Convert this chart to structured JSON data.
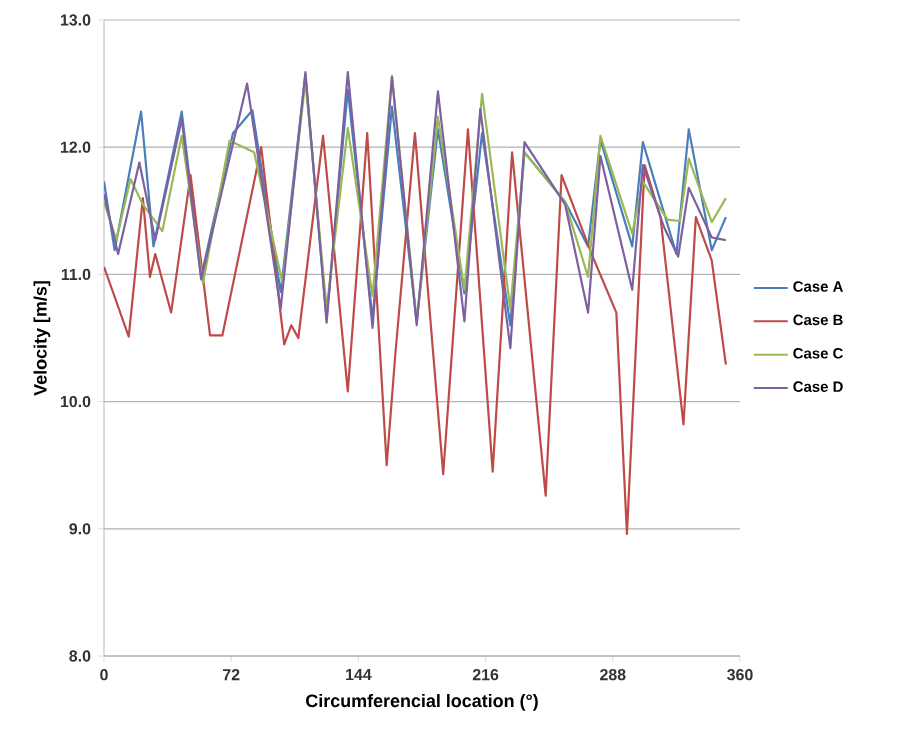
{
  "chart_data": {
    "type": "line",
    "xlabel": "Circumferencial location (°)",
    "ylabel": "Velocity [m/s]",
    "xlim": [
      0,
      360
    ],
    "xticks": [
      0,
      72,
      144,
      216,
      288,
      360
    ],
    "ylim": [
      8,
      13
    ],
    "yticks": [
      {
        "value": 8,
        "label": "8.0"
      },
      {
        "value": 9,
        "label": "9.0"
      },
      {
        "value": 10,
        "label": "10.0"
      },
      {
        "value": 11,
        "label": "11.0"
      },
      {
        "value": 12,
        "label": "12.0"
      },
      {
        "value": 13,
        "label": "13.0"
      }
    ],
    "grid": "y",
    "legend": "right",
    "marker": "none",
    "line_style": "solid",
    "series": [
      {
        "name": "Case A",
        "color": "#4a7ebb",
        "x": [
          0,
          6,
          21,
          28,
          44,
          55,
          73,
          84,
          100,
          114,
          126,
          138,
          152,
          163,
          177,
          189,
          204,
          214,
          230,
          238,
          261,
          274,
          281,
          299,
          305,
          324,
          331,
          344,
          352
        ],
        "values": [
          11.73,
          11.19,
          12.28,
          11.22,
          12.28,
          10.98,
          12.11,
          12.29,
          10.86,
          12.57,
          10.65,
          12.45,
          10.65,
          12.32,
          10.63,
          12.14,
          10.85,
          12.11,
          10.6,
          11.96,
          11.57,
          11.22,
          12.06,
          11.22,
          12.04,
          11.16,
          12.14,
          11.19,
          11.45
        ]
      },
      {
        "name": "Case B",
        "color": "#be4b48",
        "x": [
          0,
          14,
          22,
          26,
          29,
          38,
          49,
          60,
          67,
          89,
          102,
          106,
          110,
          124,
          138,
          149,
          160,
          165,
          176,
          192,
          206,
          220,
          231,
          250,
          259,
          276,
          290,
          296,
          306,
          315,
          328,
          335,
          344,
          352
        ],
        "values": [
          11.06,
          10.51,
          11.6,
          10.98,
          11.16,
          10.7,
          11.78,
          10.52,
          10.52,
          12.0,
          10.45,
          10.6,
          10.5,
          12.09,
          10.08,
          12.11,
          9.5,
          10.39,
          12.11,
          9.43,
          12.14,
          9.45,
          11.96,
          9.26,
          11.78,
          11.16,
          10.7,
          8.96,
          11.86,
          11.45,
          9.82,
          11.45,
          11.11,
          10.29
        ]
      },
      {
        "name": "Case C",
        "color": "#98b954",
        "x": [
          0,
          7,
          15,
          22,
          33,
          44,
          56,
          71,
          85,
          101,
          114,
          126,
          138,
          152,
          163,
          177,
          189,
          204,
          214,
          230,
          238,
          261,
          274,
          281,
          299,
          305,
          319,
          326,
          331,
          344,
          352
        ],
        "values": [
          11.57,
          11.27,
          11.75,
          11.55,
          11.34,
          12.09,
          10.93,
          12.05,
          11.96,
          10.93,
          12.52,
          10.73,
          12.15,
          10.83,
          12.56,
          10.63,
          12.24,
          10.88,
          12.42,
          10.73,
          11.96,
          11.57,
          10.98,
          12.09,
          11.32,
          11.73,
          11.43,
          11.42,
          11.91,
          11.41,
          11.6
        ]
      },
      {
        "name": "Case D",
        "color": "#7d60a0",
        "x": [
          0,
          8,
          20,
          29,
          44,
          55,
          81,
          100,
          114,
          126,
          138,
          152,
          163,
          177,
          189,
          204,
          213,
          230,
          238,
          261,
          274,
          281,
          299,
          305,
          317,
          325,
          331,
          344,
          352
        ],
        "values": [
          11.63,
          11.16,
          11.88,
          11.27,
          12.22,
          10.96,
          12.5,
          10.73,
          12.59,
          10.62,
          12.59,
          10.58,
          12.55,
          10.6,
          12.44,
          10.63,
          12.3,
          10.42,
          12.04,
          11.55,
          10.7,
          11.93,
          10.88,
          11.86,
          11.37,
          11.14,
          11.68,
          11.29,
          11.27
        ]
      }
    ]
  }
}
